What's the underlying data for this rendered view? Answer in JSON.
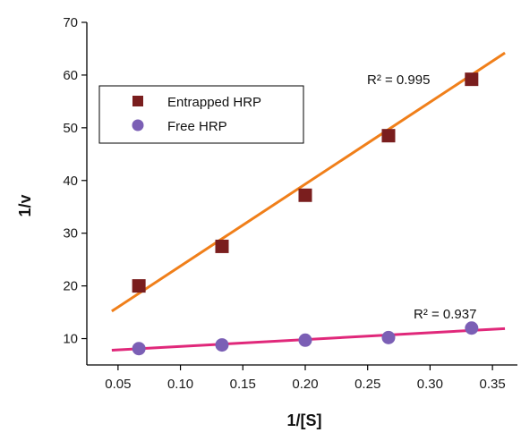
{
  "chart_data": {
    "type": "scatter",
    "xlabel": "1/[S]",
    "ylabel": "1/v",
    "xlim": [
      0.025,
      0.37
    ],
    "ylim": [
      5,
      70
    ],
    "x_ticks": [
      "0.05",
      "0.10",
      "0.15",
      "0.20",
      "0.25",
      "0.30",
      "0.35"
    ],
    "y_ticks": [
      "10",
      "20",
      "30",
      "40",
      "50",
      "60",
      "70"
    ],
    "x_tick_values": [
      0.05,
      0.1,
      0.15,
      0.2,
      0.25,
      0.3,
      0.35
    ],
    "y_tick_values": [
      10,
      20,
      30,
      40,
      50,
      60,
      70
    ],
    "grid": false,
    "legend_position": "upper-left",
    "series": [
      {
        "name": "Entrapped HRP",
        "marker": "square",
        "color": "#7a1e1e",
        "x": [
          0.0667,
          0.1333,
          0.2,
          0.2667,
          0.3333
        ],
        "y": [
          20.0,
          27.5,
          37.2,
          48.5,
          59.2
        ],
        "fit": {
          "color": "#f07f1a",
          "x": [
            0.045,
            0.36
          ],
          "y": [
            15.2,
            64.2
          ],
          "label": "R² = 0.995"
        }
      },
      {
        "name": "Free HRP",
        "marker": "circle",
        "color": "#7b5fb5",
        "x": [
          0.0667,
          0.1333,
          0.2,
          0.2667,
          0.3333
        ],
        "y": [
          8.1,
          8.8,
          9.7,
          10.2,
          12.0
        ],
        "fit": {
          "color": "#e0287a",
          "x": [
            0.045,
            0.36
          ],
          "y": [
            7.8,
            11.9
          ],
          "label": "R² = 0.937"
        }
      }
    ]
  }
}
